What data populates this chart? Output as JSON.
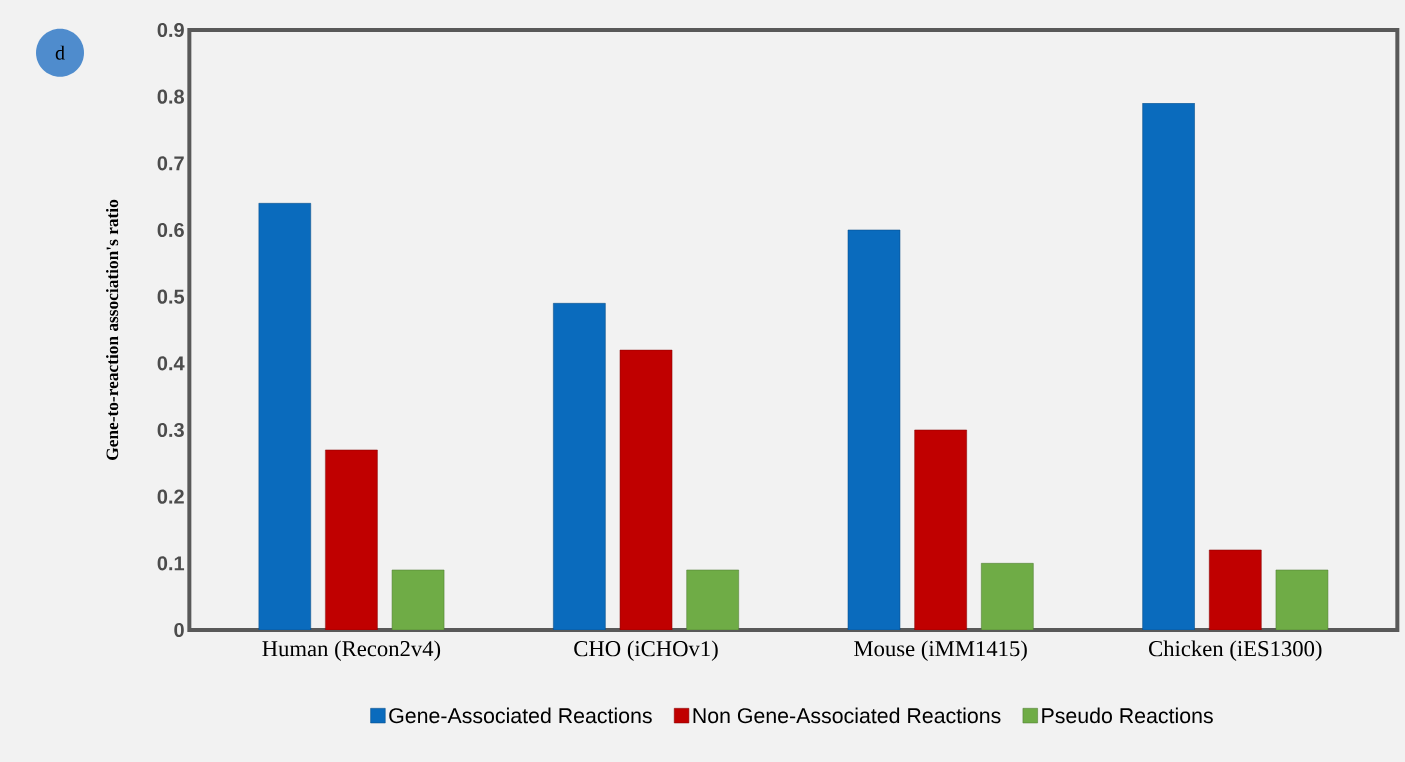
{
  "chart_data": {
    "type": "bar",
    "ylabel": "Gene-to-reaction  association's ratio",
    "annotations": [
      "d"
    ],
    "categories": [
      "Human (Recon2v4)",
      "CHO (iCHOv1)",
      "Mouse (iMM1415)",
      "Chicken (iES1300)"
    ],
    "series": [
      {
        "name": "Gene-Associated Reactions",
        "color": "#0a6bbd",
        "values": [
          0.64,
          0.49,
          0.6,
          0.79
        ]
      },
      {
        "name": "Non Gene-Associated Reactions",
        "color": "#c00000",
        "values": [
          0.27,
          0.42,
          0.3,
          0.12
        ]
      },
      {
        "name": "Pseudo Reactions",
        "color": "#6fac46",
        "values": [
          0.09,
          0.09,
          0.1,
          0.09
        ]
      }
    ],
    "ylim": [
      0,
      0.9
    ],
    "yticks": [
      0,
      0.1,
      0.2,
      0.3,
      0.4,
      0.5,
      0.6,
      0.7,
      0.8,
      0.9
    ],
    "legend": "bottom"
  }
}
